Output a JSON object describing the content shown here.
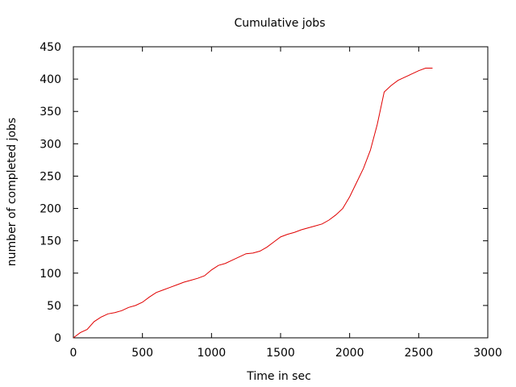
{
  "chart_data": {
    "type": "line",
    "title": "Cumulative jobs",
    "xlabel": "Time in sec",
    "ylabel": "number of completed jobs",
    "xlim": [
      0,
      3000
    ],
    "ylim": [
      0,
      450
    ],
    "xticks": [
      0,
      500,
      1000,
      1500,
      2000,
      2500,
      3000
    ],
    "yticks": [
      0,
      50,
      100,
      150,
      200,
      250,
      300,
      350,
      400,
      450
    ],
    "xtick_labels": [
      "0",
      "500",
      "1000",
      "1500",
      "2000",
      "2500",
      "3000"
    ],
    "ytick_labels": [
      "0",
      "50",
      "100",
      "150",
      "200",
      "250",
      "300",
      "350",
      "400",
      "450"
    ],
    "grid": false,
    "legend": false,
    "series": [
      {
        "color": "#e00000",
        "x": [
          0,
          50,
          100,
          150,
          200,
          250,
          300,
          350,
          400,
          450,
          500,
          550,
          600,
          650,
          700,
          750,
          800,
          850,
          900,
          950,
          1000,
          1050,
          1100,
          1150,
          1200,
          1250,
          1300,
          1350,
          1400,
          1450,
          1500,
          1550,
          1600,
          1650,
          1700,
          1750,
          1800,
          1850,
          1900,
          1950,
          2000,
          2050,
          2100,
          2150,
          2200,
          2250,
          2275,
          2300,
          2350,
          2400,
          2450,
          2500,
          2550,
          2600
        ],
        "y": [
          0,
          8,
          13,
          25,
          32,
          37,
          39,
          42,
          47,
          50,
          55,
          63,
          70,
          74,
          78,
          82,
          86,
          89,
          92,
          96,
          105,
          112,
          115,
          120,
          125,
          130,
          131,
          134,
          140,
          148,
          156,
          160,
          163,
          167,
          170,
          173,
          176,
          182,
          190,
          200,
          218,
          240,
          262,
          290,
          330,
          380,
          385,
          390,
          398,
          403,
          408,
          413,
          417,
          417
        ]
      }
    ]
  }
}
